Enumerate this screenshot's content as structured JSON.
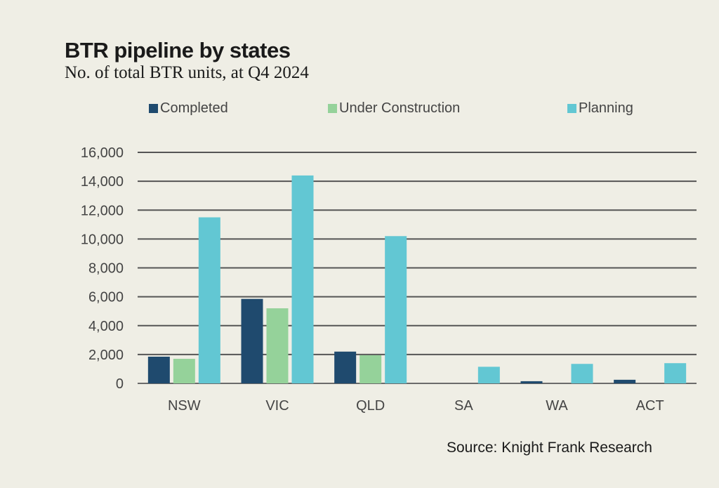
{
  "chart_data": {
    "type": "bar",
    "title": "BTR pipeline by states",
    "subtitle": "No. of total BTR units, at Q4 2024",
    "categories": [
      "NSW",
      "VIC",
      "QLD",
      "SA",
      "WA",
      "ACT"
    ],
    "series": [
      {
        "name": "Completed",
        "color": "#1f4a6e",
        "values": [
          1850,
          5850,
          2200,
          0,
          150,
          250
        ]
      },
      {
        "name": "Under Construction",
        "color": "#95d29a",
        "values": [
          1700,
          5200,
          1950,
          0,
          0,
          0
        ]
      },
      {
        "name": "Planning",
        "color": "#62c7d3",
        "values": [
          11500,
          14400,
          10200,
          1150,
          1350,
          1400
        ]
      }
    ],
    "ylim": [
      0,
      16000
    ],
    "yticks": [
      "0",
      "2,000",
      "4,000",
      "6,000",
      "8,000",
      "10,000",
      "12,000",
      "14,000",
      "16,000"
    ],
    "grid": true,
    "legend_position": "top",
    "source": "Source: Knight Frank Research"
  }
}
